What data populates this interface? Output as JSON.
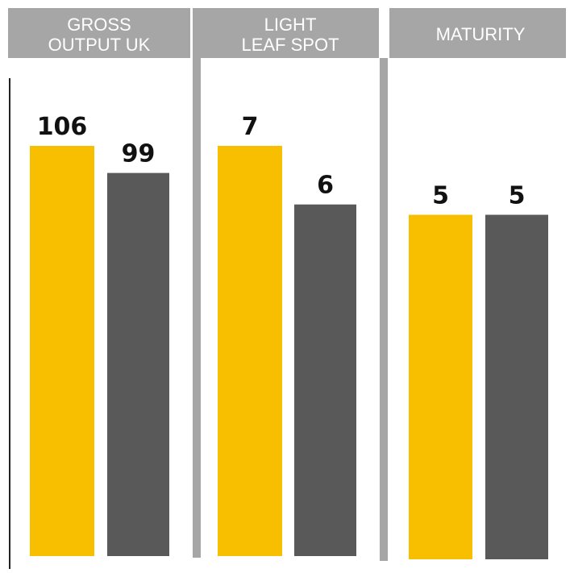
{
  "colors": {
    "series_a": "#f8bf00",
    "series_b": "#595959",
    "header_bg": "#a6a6a6",
    "divider": "#a6a6a6",
    "axis": "#222222",
    "header_text": "#ffffff",
    "label_text": "#111111"
  },
  "chart_data": [
    {
      "type": "bar",
      "title_lines": [
        "GROSS",
        "OUTPUT UK"
      ],
      "values": [
        106,
        99
      ],
      "labels": [
        "106",
        "99"
      ],
      "ylim": [
        0,
        106
      ]
    },
    {
      "type": "bar",
      "title_lines": [
        "LIGHT",
        "LEAF SPOT"
      ],
      "values": [
        7,
        6
      ],
      "labels": [
        "7",
        "6"
      ],
      "ylim": [
        0,
        7
      ]
    },
    {
      "type": "bar",
      "title_lines": [
        "MATURITY"
      ],
      "values": [
        5,
        5
      ],
      "labels": [
        "5",
        "5"
      ],
      "ylim": [
        0,
        6
      ]
    }
  ]
}
